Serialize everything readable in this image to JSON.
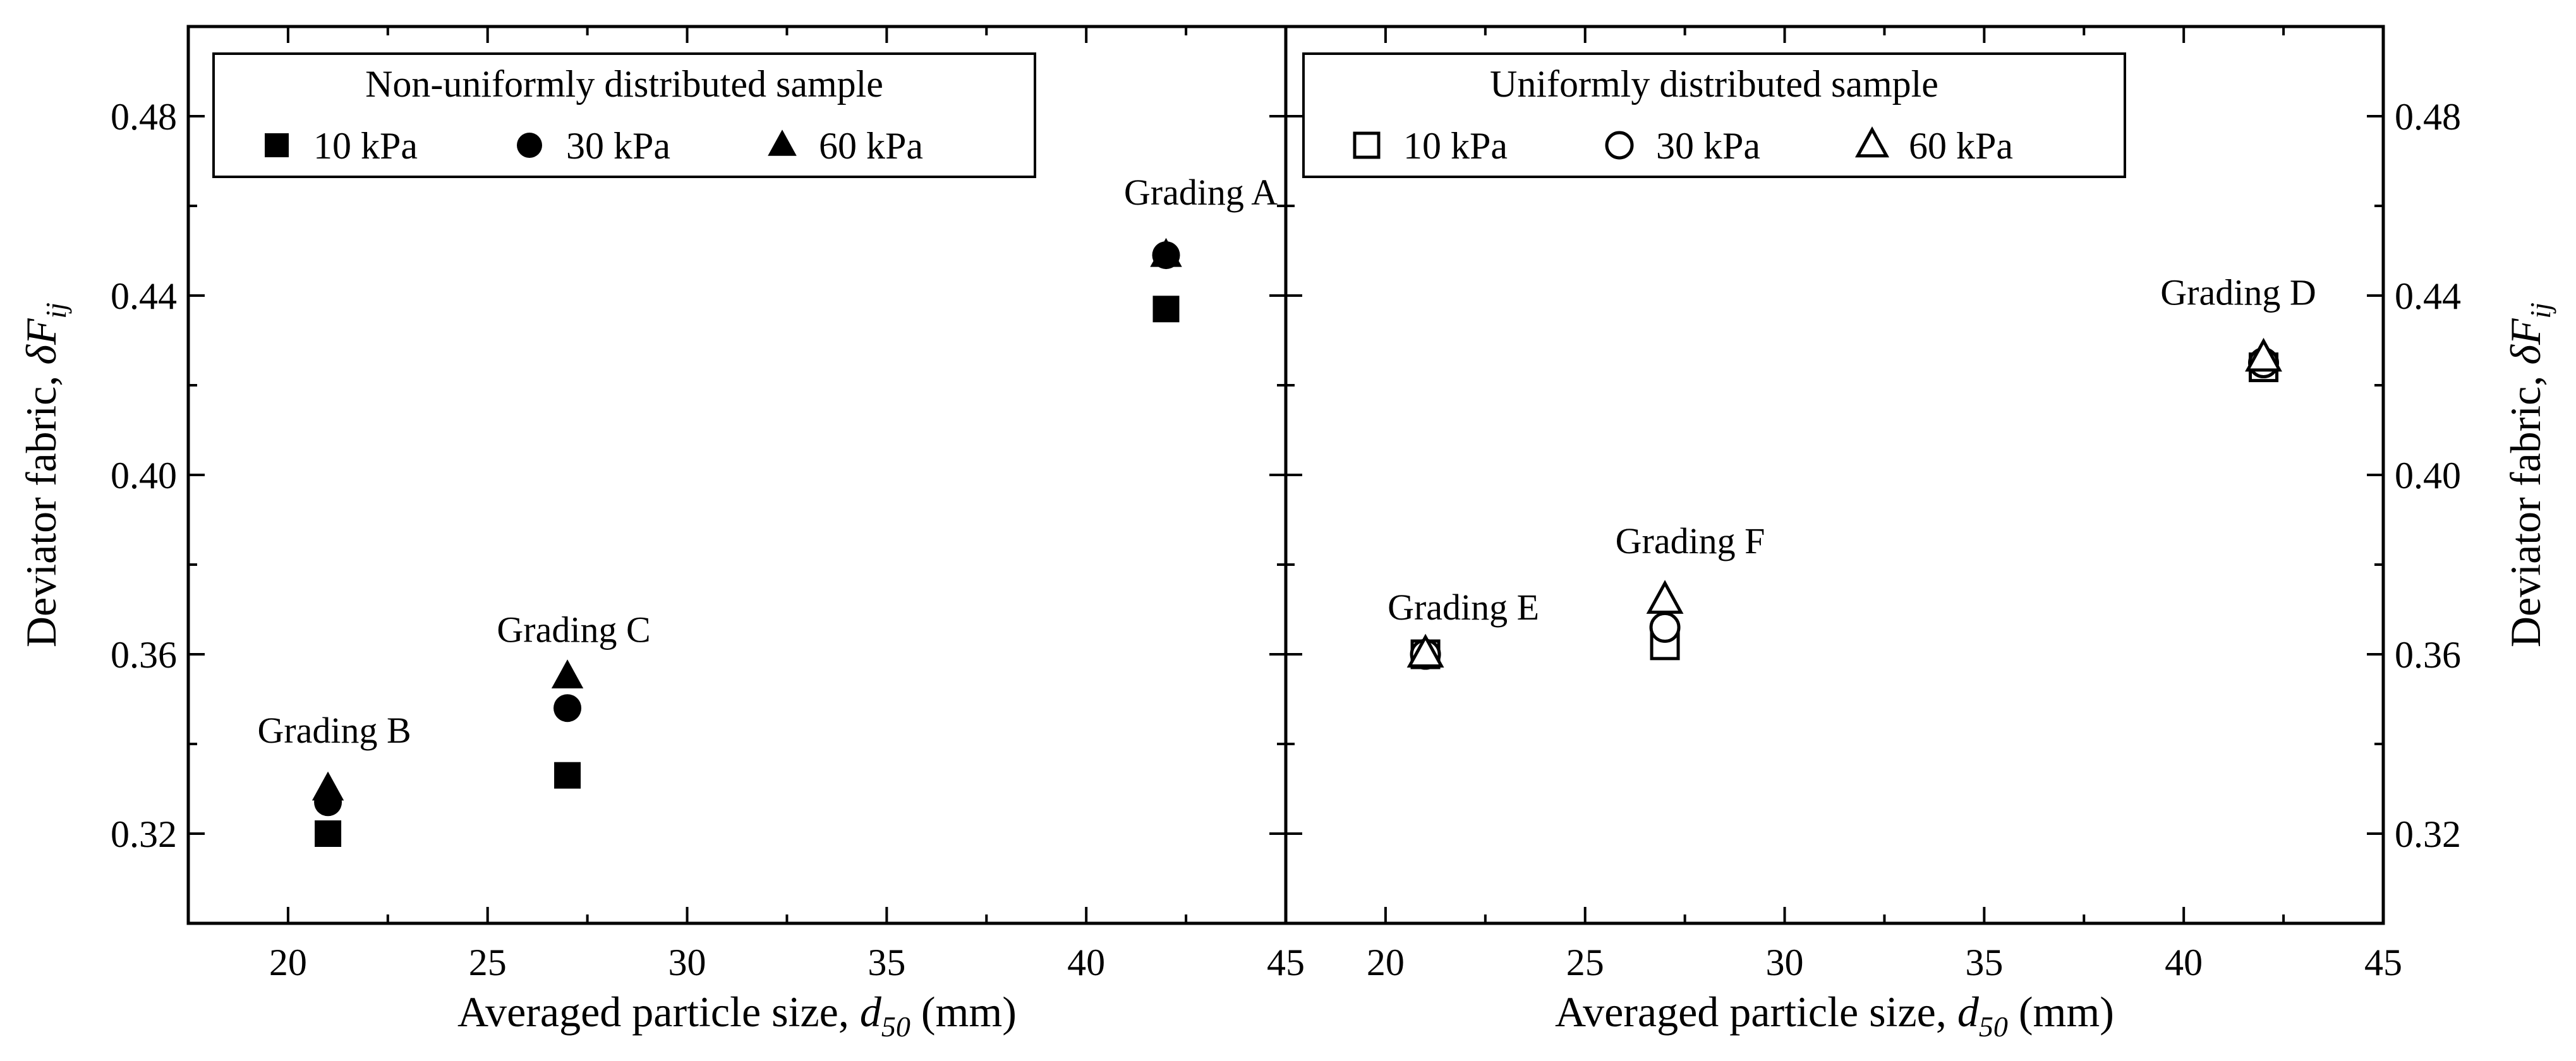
{
  "chart_data": [
    {
      "type": "scatter",
      "legend_title": "Non-uniformly distributed sample",
      "legend_position": "top-left",
      "xlabel_main": "Averaged particle size, ",
      "xlabel_var": "d",
      "xlabel_sub": "50",
      "xlabel_unit": " (mm)",
      "ylabel_main": "Deviator fabric, ",
      "ylabel_var": "δF",
      "ylabel_sub": "ij",
      "xlim": [
        17.5,
        45
      ],
      "ylim": [
        0.3,
        0.5
      ],
      "xticks": [
        "20",
        "25",
        "30",
        "35",
        "40",
        "45"
      ],
      "yticks": [
        "0.32",
        "0.36",
        "0.40",
        "0.44",
        "0.48"
      ],
      "marker_fill": "filled",
      "series": [
        {
          "name": "10 kPa",
          "marker": "square",
          "x": [
            21,
            27,
            42
          ],
          "y": [
            0.32,
            0.333,
            0.437
          ]
        },
        {
          "name": "30 kPa",
          "marker": "circle",
          "x": [
            21,
            27,
            42
          ],
          "y": [
            0.327,
            0.348,
            0.449
          ]
        },
        {
          "name": "60 kPa",
          "marker": "triangle",
          "x": [
            21,
            27,
            42
          ],
          "y": [
            0.33,
            0.355,
            0.449
          ]
        }
      ],
      "annotations": [
        {
          "text": "Grading B",
          "x": 21,
          "y": 0.329
        },
        {
          "text": "Grading C",
          "x": 27,
          "y": 0.355
        },
        {
          "text": "Grading A",
          "x": 42,
          "y": 0.449
        }
      ]
    },
    {
      "type": "scatter",
      "legend_title": "Uniformly distributed sample",
      "legend_position": "top-left",
      "xlabel_main": "Averaged particle size, ",
      "xlabel_var": "d",
      "xlabel_sub": "50",
      "xlabel_unit": " (mm)",
      "ylabel_main": "Deviator fabric, ",
      "ylabel_var": "δF",
      "ylabel_sub": "ij",
      "xlim": [
        17.5,
        45
      ],
      "ylim": [
        0.3,
        0.5
      ],
      "xticks": [
        "20",
        "25",
        "30",
        "35",
        "40",
        "45"
      ],
      "yticks": [
        "0.32",
        "0.36",
        "0.40",
        "0.44",
        "0.48"
      ],
      "marker_fill": "hollow",
      "series": [
        {
          "name": "10 kPa",
          "marker": "square",
          "x": [
            21,
            27,
            42
          ],
          "y": [
            0.36,
            0.362,
            0.424
          ]
        },
        {
          "name": "30 kPa",
          "marker": "circle",
          "x": [
            21,
            27,
            42
          ],
          "y": [
            0.36,
            0.366,
            0.425
          ]
        },
        {
          "name": "60 kPa",
          "marker": "triangle",
          "x": [
            21,
            27,
            42
          ],
          "y": [
            0.36,
            0.372,
            0.426
          ]
        }
      ],
      "annotations": [
        {
          "text": "Grading E",
          "x": 21,
          "y": 0.36
        },
        {
          "text": "Grading F",
          "x": 27,
          "y": 0.372
        },
        {
          "text": "Grading D",
          "x": 42,
          "y": 0.426
        }
      ]
    }
  ]
}
